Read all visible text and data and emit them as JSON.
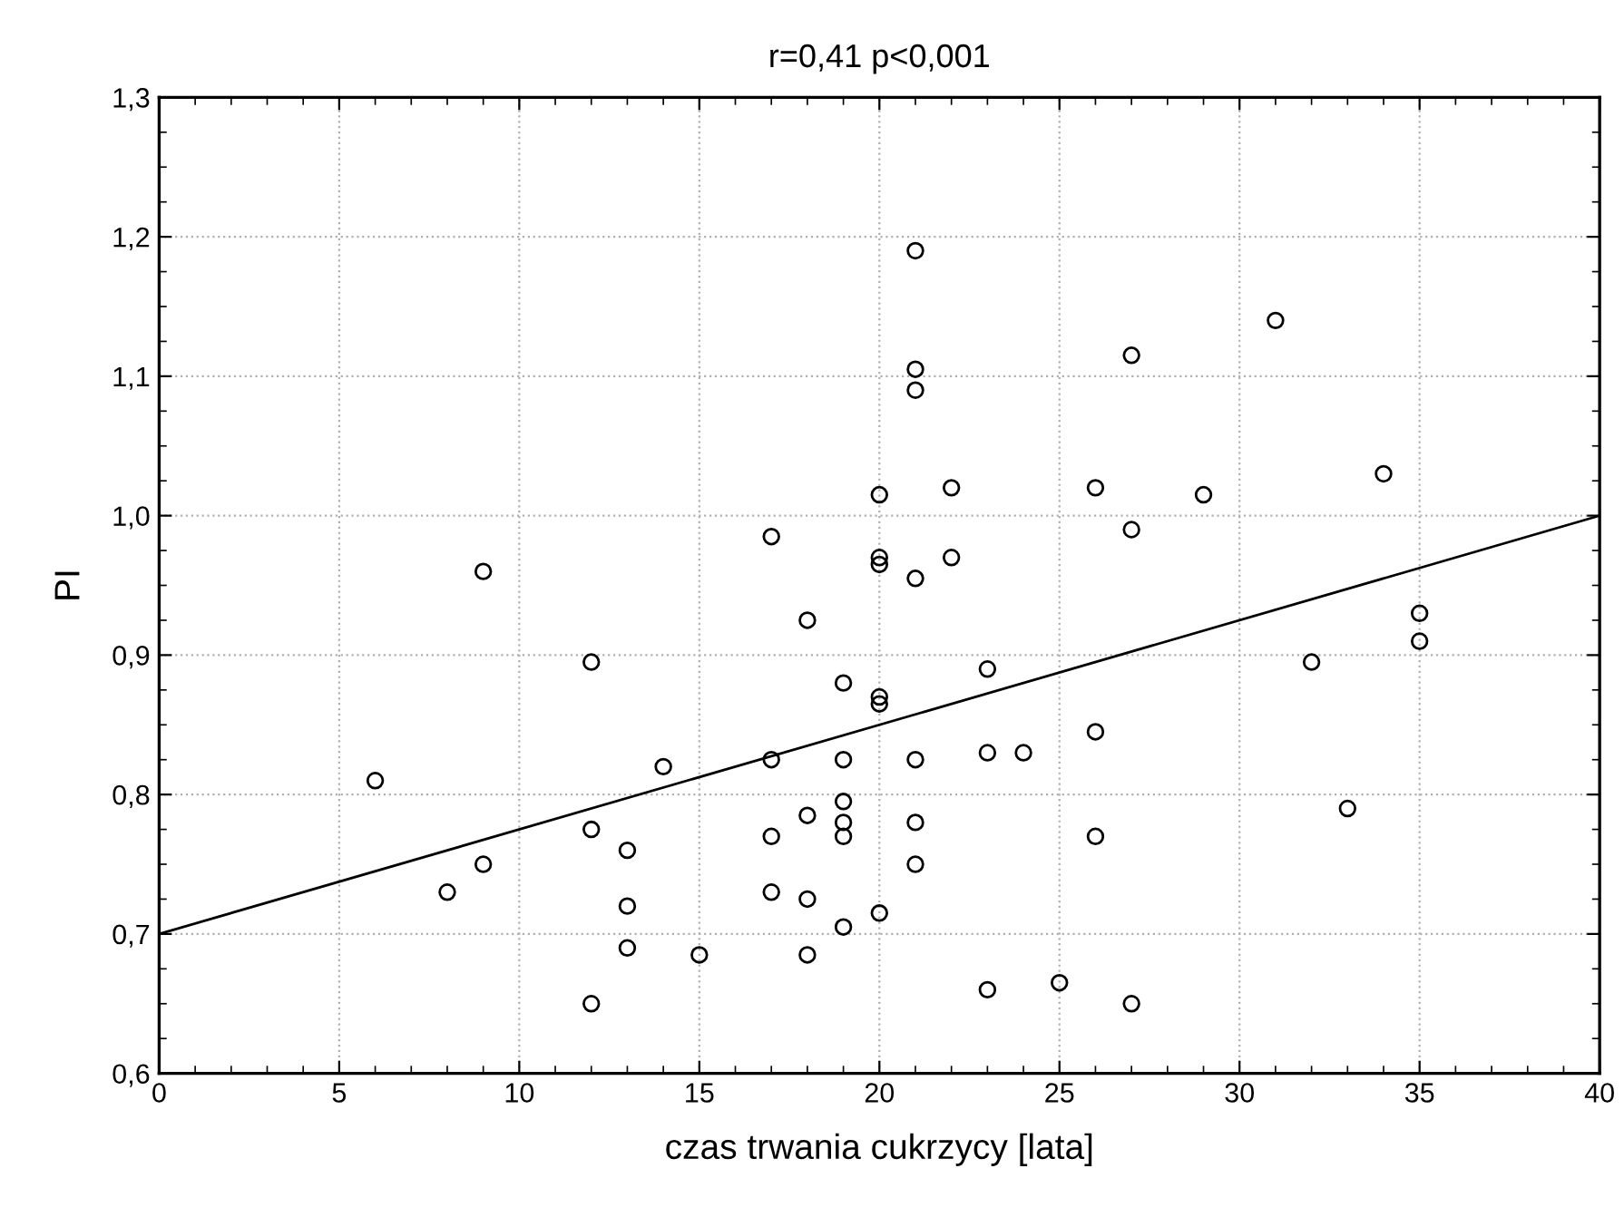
{
  "chart_data": {
    "type": "scatter",
    "title": "r=0,41 p<0,001",
    "xlabel": "czas trwania cukrzycy [lata]",
    "ylabel": "PI",
    "xlim": [
      0,
      40
    ],
    "xticks": [
      0,
      5,
      10,
      15,
      20,
      25,
      30,
      35,
      40
    ],
    "ylim": [
      0.6,
      1.3
    ],
    "yticks": [
      {
        "value": 0.6,
        "label": "0,6"
      },
      {
        "value": 0.7,
        "label": "0,7"
      },
      {
        "value": 0.8,
        "label": "0,8"
      },
      {
        "value": 0.9,
        "label": "0,9"
      },
      {
        "value": 1.0,
        "label": "1,0"
      },
      {
        "value": 1.1,
        "label": "1,1"
      },
      {
        "value": 1.2,
        "label": "1,2"
      },
      {
        "value": 1.3,
        "label": "1,3"
      }
    ],
    "grid": true,
    "series": [
      {
        "marker": "circle",
        "color": "#000000",
        "x": [
          21,
          31,
          27,
          21,
          21,
          34,
          22,
          26,
          20,
          29,
          27,
          17,
          20,
          22,
          20,
          9,
          21,
          18,
          35,
          35,
          12,
          32,
          23,
          19,
          20,
          20,
          26,
          17,
          19,
          21,
          23,
          24,
          14,
          6,
          19,
          18,
          19,
          21,
          12,
          17,
          19,
          26,
          33,
          13,
          9,
          21,
          8,
          17,
          18,
          13,
          20,
          19,
          13,
          15,
          18,
          23,
          25,
          12,
          27
        ],
        "values": [
          1.19,
          1.14,
          1.115,
          1.105,
          1.09,
          1.03,
          1.02,
          1.02,
          1.015,
          1.015,
          0.99,
          0.985,
          0.97,
          0.97,
          0.965,
          0.96,
          0.955,
          0.925,
          0.93,
          0.91,
          0.895,
          0.895,
          0.89,
          0.88,
          0.87,
          0.865,
          0.845,
          0.825,
          0.825,
          0.825,
          0.83,
          0.83,
          0.82,
          0.81,
          0.795,
          0.785,
          0.78,
          0.78,
          0.775,
          0.77,
          0.77,
          0.77,
          0.79,
          0.76,
          0.75,
          0.75,
          0.73,
          0.73,
          0.725,
          0.72,
          0.715,
          0.705,
          0.69,
          0.685,
          0.685,
          0.66,
          0.665,
          0.65,
          0.65
        ]
      },
      {
        "type": "line",
        "marker": "none",
        "color": "#000000",
        "x": [
          0,
          40
        ],
        "values": [
          0.7,
          1.0
        ]
      }
    ]
  }
}
